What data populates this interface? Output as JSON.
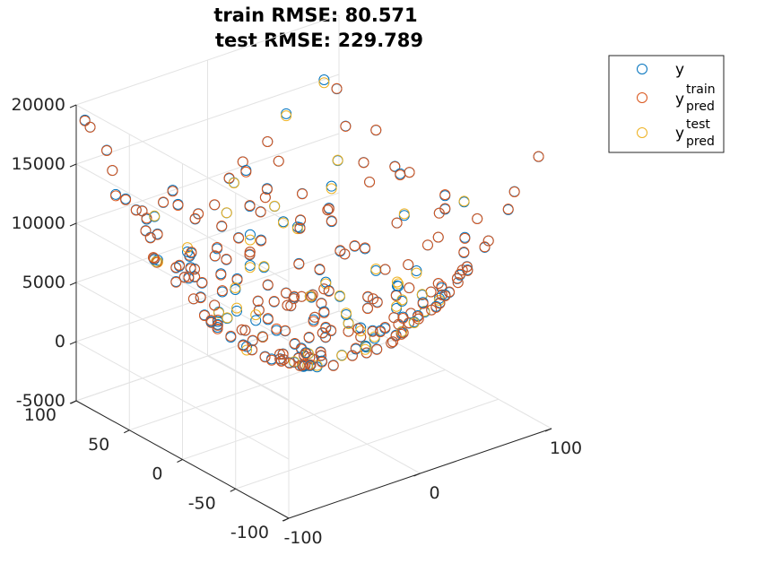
{
  "chart_data": {
    "type": "scatter3d",
    "title": [
      "train RMSE: 80.571",
      "test RMSE: 229.789"
    ],
    "xlim": [
      -100,
      100
    ],
    "ylim": [
      -100,
      100
    ],
    "zlim": [
      -5000,
      20000
    ],
    "x_ticks": [
      "-100",
      "0",
      "100"
    ],
    "y_ticks": [
      "100",
      "50",
      "0",
      "-50",
      "-100"
    ],
    "z_ticks": [
      "20000",
      "15000",
      "10000",
      "5000",
      "0",
      "-5000"
    ],
    "grid": true,
    "legend_position": "top-right",
    "series": [
      {
        "name": "y",
        "base": "y",
        "sub": "",
        "sup": "",
        "color": "#0072BD",
        "marker": "circle"
      },
      {
        "name": "y_pred^train",
        "base": "y",
        "sub": "pred",
        "sup": "train",
        "color": "#D95319",
        "marker": "circle"
      },
      {
        "name": "y_pred^test",
        "base": "y",
        "sub": "pred",
        "sup": "test",
        "color": "#EDB120",
        "marker": "circle"
      }
    ],
    "data_description": "Paraboloid surface samples z ≈ x^2 + y^2 over x,y in [-100,100]; ~250 samples, ~80% train / 20% test",
    "sample_points_xy": [
      [
        -95,
        98
      ],
      [
        92,
        -40
      ],
      [
        45,
        -80
      ],
      [
        -80,
        48
      ],
      [
        14,
        97
      ],
      [
        -38,
        70
      ],
      [
        -66,
        -24
      ],
      [
        -60,
        73
      ],
      [
        -18,
        26
      ],
      [
        19,
        -16
      ],
      [
        3,
        -3
      ],
      [
        30,
        30
      ],
      [
        -50,
        -50
      ],
      [
        70,
        -10
      ],
      [
        -10,
        70
      ],
      [
        60,
        60
      ],
      [
        -70,
        10
      ],
      [
        10,
        -70
      ],
      [
        85,
        20
      ],
      [
        20,
        85
      ],
      [
        -25,
        -75
      ],
      [
        -75,
        -25
      ],
      [
        40,
        -40
      ],
      [
        -40,
        40
      ]
    ]
  }
}
